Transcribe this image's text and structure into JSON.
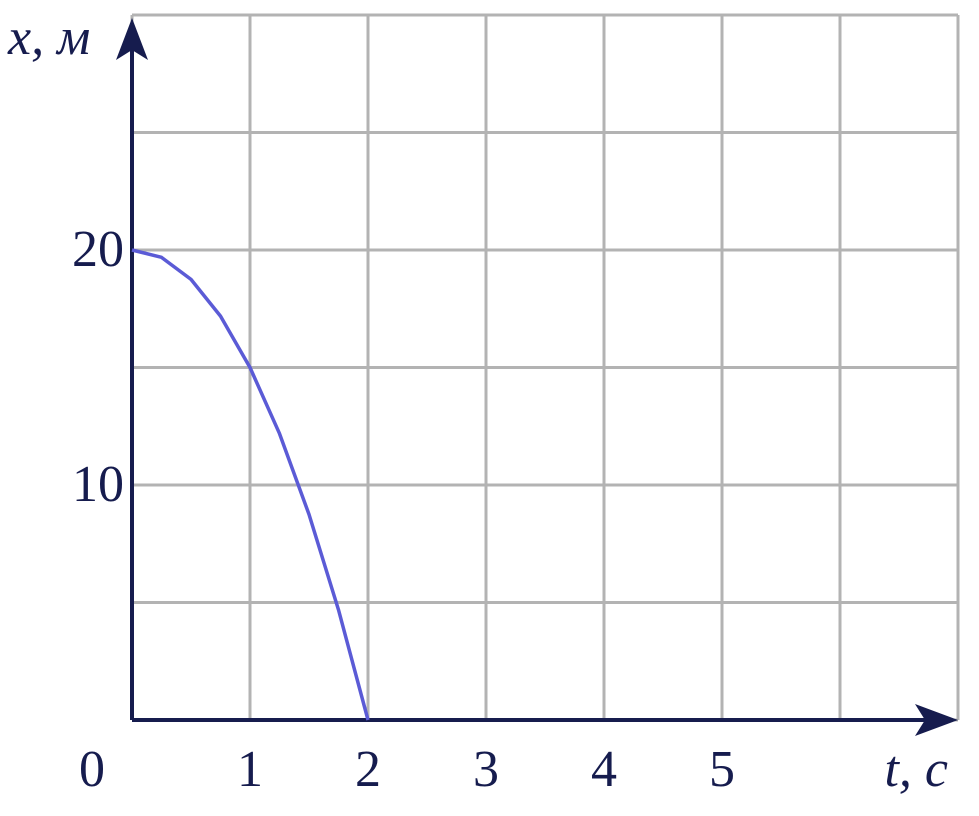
{
  "chart_data": {
    "type": "line",
    "x_label": "t, с",
    "y_label": "x, м",
    "x": [
      0,
      0.25,
      0.5,
      0.75,
      1,
      1.25,
      1.5,
      1.75,
      2
    ],
    "series": [
      {
        "color": "#5b5bd6",
        "values": [
          20,
          19.6875,
          18.75,
          17.1875,
          15,
          12.1875,
          8.75,
          4.6875,
          0
        ]
      }
    ],
    "xlim": [
      0,
      7
    ],
    "ylim": [
      0,
      30
    ],
    "xticks": [
      0,
      1,
      2,
      3,
      4,
      5
    ],
    "yticks": [
      10,
      20
    ],
    "xgrid": [
      0,
      1,
      2,
      3,
      4,
      5,
      6,
      7
    ],
    "ygrid": [
      0,
      5,
      10,
      15,
      20,
      25,
      30
    ],
    "grid": true,
    "axis_color": "#161c4e",
    "grid_color": "#b3b3b3"
  }
}
